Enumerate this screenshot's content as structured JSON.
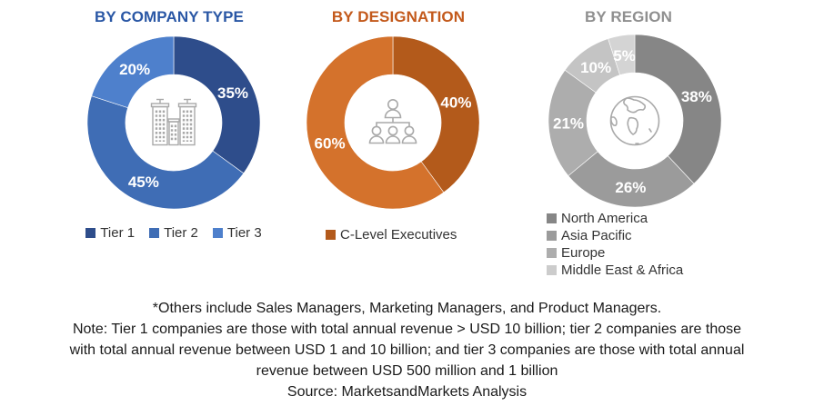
{
  "chart_data": [
    {
      "type": "pie",
      "subtype": "donut",
      "title": "BY COMPANY TYPE",
      "title_color": "#2A57A5",
      "labels": [
        "Tier 1",
        "Tier 2",
        "Tier 3"
      ],
      "values": [
        35,
        45,
        20
      ],
      "data_labels": [
        "35%",
        "45%",
        "20%"
      ],
      "colors": [
        "#2E4D8B",
        "#3F6DB5",
        "#4E80CC"
      ],
      "start_angle_deg": 0,
      "center_icon": "buildings-icon",
      "legend_position": "bottom-horizontal",
      "legend": [
        {
          "label": "Tier 1",
          "color": "#2E4D8B"
        },
        {
          "label": "Tier 2",
          "color": "#3F6DB5"
        },
        {
          "label": "Tier 3",
          "color": "#4E80CC"
        }
      ]
    },
    {
      "type": "pie",
      "subtype": "donut",
      "title": "BY DESIGNATION",
      "title_color": "#C3591B",
      "labels": [
        "C-Level Executives",
        ""
      ],
      "values": [
        40,
        60
      ],
      "data_labels": [
        "40%",
        "60%"
      ],
      "colors": [
        "#B35A1B",
        "#D4722C"
      ],
      "start_angle_deg": 0,
      "center_icon": "org-chart-icon",
      "legend_position": "bottom-horizontal",
      "legend": [
        {
          "label": "C-Level Executives",
          "color": "#B35A1B"
        }
      ]
    },
    {
      "type": "pie",
      "subtype": "donut",
      "title": "BY REGION",
      "title_color": "#8F8F8F",
      "labels": [
        "North America",
        "Asia Pacific",
        "Europe",
        "Middle East & Africa",
        ""
      ],
      "values": [
        38,
        26,
        21,
        10,
        5
      ],
      "data_labels": [
        "38%",
        "26%",
        "21%",
        "10%",
        "5%"
      ],
      "colors": [
        "#868686",
        "#9B9B9B",
        "#ADADAD",
        "#C4C4C4",
        "#D4D4D4"
      ],
      "start_angle_deg": 0,
      "center_icon": "globe-icon",
      "legend_position": "bottom-vertical",
      "legend": [
        {
          "label": "North America",
          "color": "#868686"
        },
        {
          "label": "Asia Pacific",
          "color": "#9B9B9B"
        },
        {
          "label": "Europe",
          "color": "#ADADAD"
        },
        {
          "label": "Middle East & Africa",
          "color": "#CCCCCC"
        }
      ]
    }
  ],
  "footnote": {
    "lines": [
      "*Others include Sales Managers, Marketing Managers, and Product Managers.",
      "Note: Tier 1 companies are those with total annual revenue > USD 10 billion; tier 2 companies are those",
      "with total annual revenue between USD 1 and 10 billion; and tier 3 companies are those with total annual",
      "revenue between USD 500 million and 1 billion",
      "Source: MarketsandMarkets Analysis"
    ]
  }
}
